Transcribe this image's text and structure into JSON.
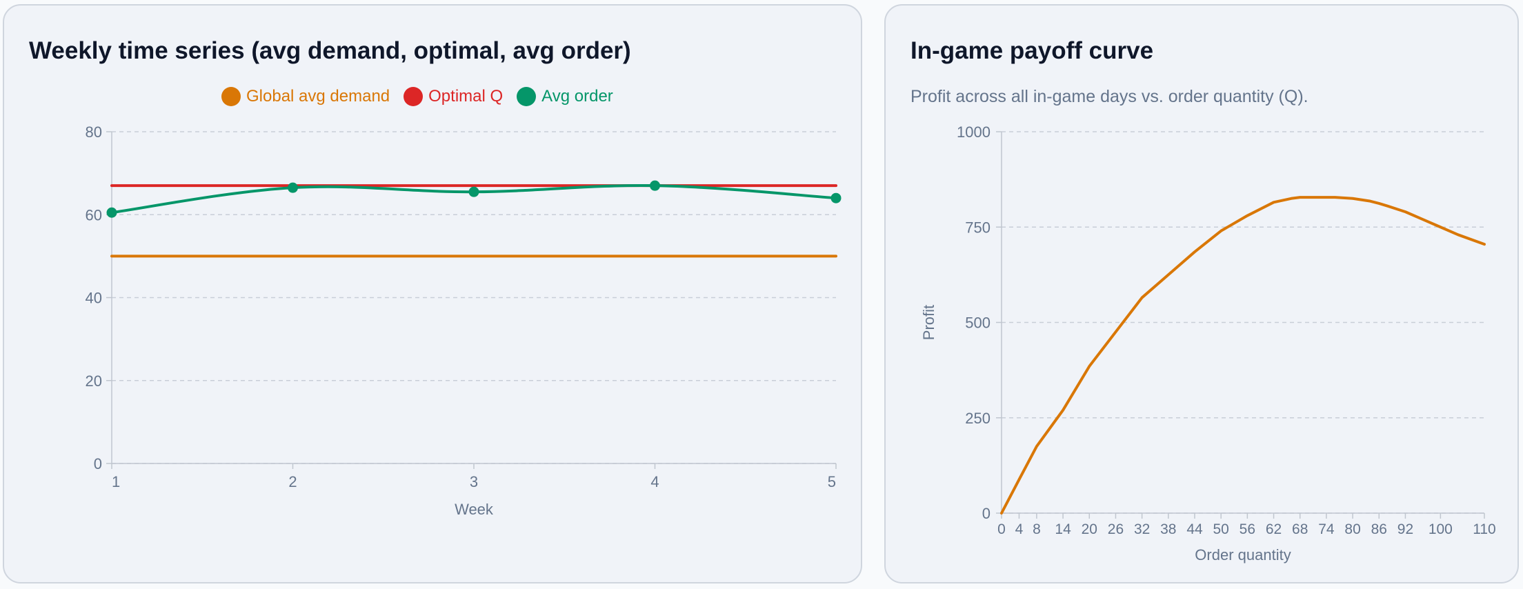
{
  "colors": {
    "demand": "#d97706",
    "optimal": "#dc2626",
    "order": "#059669",
    "profit": "#d97706",
    "grid": "#c8ced7",
    "axis": "#c0c6cf",
    "tick": "#64748b"
  },
  "weekly_card": {
    "title": "Weekly time series (avg demand, optimal, avg order)",
    "legend": [
      {
        "label": "Global avg demand",
        "color": "#d97706"
      },
      {
        "label": "Optimal Q",
        "color": "#dc2626"
      },
      {
        "label": "Avg order",
        "color": "#059669"
      }
    ]
  },
  "payoff_card": {
    "title": "In-game payoff curve",
    "subtitle": "Profit across all in-game days vs. order quantity (Q)."
  },
  "chart_data": [
    {
      "type": "line",
      "title": "Weekly time series (avg demand, optimal, avg order)",
      "xlabel": "Week",
      "ylabel": "",
      "x": [
        1,
        2,
        3,
        4,
        5
      ],
      "xlim": [
        1,
        5
      ],
      "ylim": [
        0,
        80
      ],
      "yticks": [
        0,
        20,
        40,
        60,
        80
      ],
      "grid": true,
      "legend_position": "top",
      "series": [
        {
          "name": "Global avg demand",
          "values": [
            50,
            50,
            50,
            50,
            50
          ],
          "color": "#d97706",
          "markers": false
        },
        {
          "name": "Optimal Q",
          "values": [
            67,
            67,
            67,
            67,
            67
          ],
          "color": "#dc2626",
          "markers": false
        },
        {
          "name": "Avg order",
          "values": [
            60.5,
            66.5,
            65.5,
            67,
            64
          ],
          "color": "#059669",
          "markers": true
        }
      ]
    },
    {
      "type": "line",
      "title": "In-game payoff curve",
      "xlabel": "Order quantity",
      "ylabel": "Profit",
      "xlim": [
        0,
        110
      ],
      "ylim": [
        0,
        1000
      ],
      "yticks": [
        0,
        250,
        500,
        750,
        1000
      ],
      "xticks": [
        0,
        4,
        8,
        14,
        20,
        26,
        32,
        38,
        44,
        50,
        56,
        62,
        68,
        74,
        80,
        86,
        92,
        100,
        110
      ],
      "grid": true,
      "series": [
        {
          "name": "",
          "color": "#d97706",
          "x": [
            0,
            4,
            8,
            14,
            20,
            26,
            32,
            38,
            44,
            50,
            56,
            62,
            66,
            68,
            74,
            76,
            80,
            84,
            86,
            88,
            92,
            96,
            100,
            104,
            110
          ],
          "values": [
            0,
            88,
            175,
            270,
            385,
            475,
            565,
            625,
            685,
            740,
            780,
            815,
            825,
            828,
            828,
            828,
            825,
            818,
            812,
            805,
            790,
            770,
            750,
            730,
            705
          ]
        }
      ]
    }
  ]
}
